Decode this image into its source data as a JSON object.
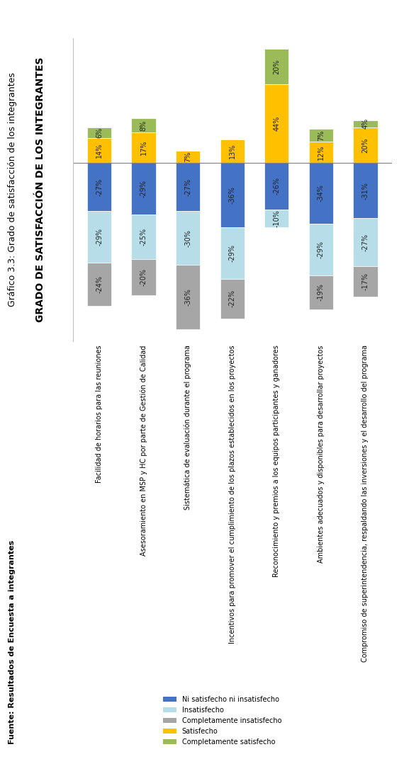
{
  "header": "Gráfico 3.3: Grado de satisfacción de los integrantes",
  "source": "Fuente: Resultados de Encuesta a integrantes",
  "chart_data": {
    "type": "bar",
    "stacked": true,
    "title": "GRADO DE SATISFACCIÓN DE LOS INTEGRANTES",
    "categories": [
      "Facilidad de horarios para las reuniones",
      "Asesoramiento en MSP y HC por parte de Gestión de Calidad",
      "Sistemática de evaluación durante el programa",
      "Incentivos para promover el cumplimiento de los plazos establecidos en los proyectos",
      "Reconocimiento y premios a los equipos participantes y ganadores",
      "Ambientes adecuados y disponibles para desarrollar proyectos",
      "Compromiso de superintendencia, respaldando las inversiones y el desarrollo del programa"
    ],
    "series": [
      {
        "name": "Ni satisfecho ni insatisfecho",
        "color": "#4472c4",
        "values": [
          -27,
          -29,
          -27,
          -36,
          -26,
          -34,
          -31
        ],
        "value_labels": [
          "-27%",
          "-29%",
          "-27%",
          "-36%",
          "-26%",
          "-34%",
          "-31%"
        ]
      },
      {
        "name": "Insatisfecho",
        "color": "#b7dee8",
        "values": [
          -29,
          -25,
          -30,
          -29,
          -10,
          -29,
          -27
        ],
        "value_labels": [
          "-29%",
          "-25%",
          "-30%",
          "-29%",
          "-10%",
          "-29%",
          "-27%"
        ]
      },
      {
        "name": "Completamente insatisfecho",
        "color": "#a6a6a6",
        "values": [
          -24,
          -20,
          -36,
          -22,
          null,
          -19,
          -17
        ],
        "value_labels": [
          "-24%",
          "-20%",
          "-36%",
          "-22%",
          null,
          "-19%",
          "-17%"
        ]
      },
      {
        "name": "Satisfecho",
        "color": "#ffc000",
        "values": [
          14,
          17,
          7,
          13,
          44,
          12,
          20
        ],
        "value_labels": [
          "14%",
          "17%",
          "7%",
          "13%",
          "44%",
          "12%",
          "20%"
        ]
      },
      {
        "name": "Completamente satisfecho",
        "color": "#9bbb59",
        "values": [
          6,
          8,
          null,
          null,
          20,
          7,
          4
        ],
        "value_labels": [
          "6%",
          "8%",
          null,
          null,
          "20%",
          "7%",
          "4%"
        ]
      }
    ],
    "ylim": [
      -100,
      70
    ],
    "yticks": [],
    "data_labels": true,
    "tick_labels": "x",
    "legend": "lower center"
  }
}
